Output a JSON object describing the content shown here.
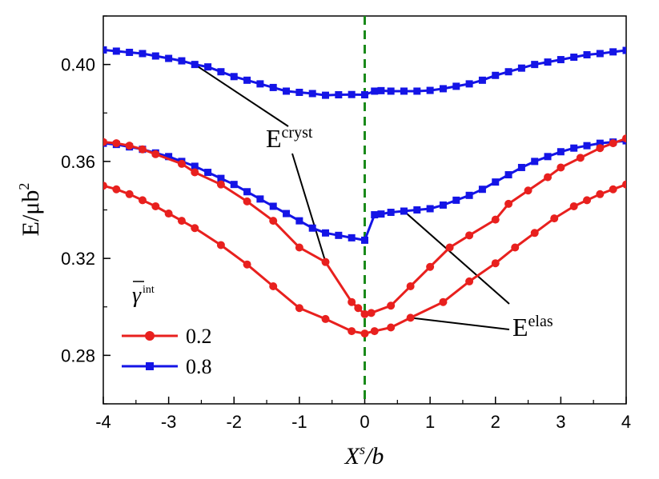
{
  "chart_data": {
    "type": "line",
    "title": "",
    "xlabel": {
      "main": "X",
      "sup": "s",
      "tail": "/b"
    },
    "ylabel": {
      "main": "E/μb",
      "sup": "2"
    },
    "xlim": [
      -4,
      4
    ],
    "ylim": [
      0.26,
      0.42
    ],
    "xticks": [
      "-4",
      "-3",
      "-2",
      "-1",
      "0",
      "1",
      "2",
      "3",
      "4"
    ],
    "yticks": [
      "0.28",
      "0.32",
      "0.36",
      "0.40"
    ],
    "reference_line": {
      "x": 0,
      "color": "#1a8a1a",
      "style": "dashed"
    },
    "legend": {
      "title_symbol": "γ",
      "title_sup": "int",
      "placement": "bottom-left",
      "entries": [
        {
          "label": "0.2",
          "color": "#e8201e",
          "marker": "circle"
        },
        {
          "label": "0.8",
          "color": "#1414e6",
          "marker": "square"
        }
      ]
    },
    "annotations": [
      {
        "text": "E",
        "sup": "cryst"
      },
      {
        "text": "E",
        "sup": "elas"
      }
    ],
    "series": [
      {
        "legend": "0.8",
        "kind": "cryst",
        "color": "#1414e6",
        "marker": "square",
        "x": [
          -4,
          -3.8,
          -3.6,
          -3.4,
          -3.2,
          -3,
          -2.8,
          -2.6,
          -2.4,
          -2.2,
          -2,
          -1.8,
          -1.6,
          -1.4,
          -1.2,
          -1,
          -0.8,
          -0.6,
          -0.4,
          -0.2,
          0,
          0.15,
          0.25,
          0.4,
          0.6,
          0.8,
          1,
          1.2,
          1.4,
          1.6,
          1.8,
          2,
          2.2,
          2.4,
          2.6,
          2.8,
          3,
          3.2,
          3.4,
          3.6,
          3.8,
          4
        ],
        "y": [
          0.406,
          0.4055,
          0.405,
          0.4045,
          0.4035,
          0.4025,
          0.4015,
          0.4,
          0.399,
          0.397,
          0.395,
          0.3935,
          0.392,
          0.3905,
          0.389,
          0.3885,
          0.388,
          0.3873,
          0.3875,
          0.3876,
          0.3875,
          0.389,
          0.3892,
          0.389,
          0.389,
          0.389,
          0.3893,
          0.39,
          0.391,
          0.392,
          0.3935,
          0.3955,
          0.397,
          0.3985,
          0.4,
          0.401,
          0.402,
          0.403,
          0.404,
          0.4045,
          0.4052,
          0.4058
        ]
      },
      {
        "legend": "0.8",
        "kind": "elas",
        "color": "#1414e6",
        "marker": "square",
        "x": [
          -4,
          -3.8,
          -3.6,
          -3.4,
          -3.2,
          -3,
          -2.8,
          -2.6,
          -2.4,
          -2.2,
          -2,
          -1.8,
          -1.6,
          -1.4,
          -1.2,
          -1,
          -0.8,
          -0.6,
          -0.4,
          -0.2,
          0,
          0.15,
          0.25,
          0.4,
          0.6,
          0.8,
          1,
          1.2,
          1.4,
          1.6,
          1.8,
          2,
          2.2,
          2.4,
          2.6,
          2.8,
          3,
          3.2,
          3.4,
          3.6,
          3.8,
          4
        ],
        "y": [
          0.3675,
          0.367,
          0.366,
          0.365,
          0.3635,
          0.362,
          0.36,
          0.358,
          0.3555,
          0.353,
          0.3505,
          0.3475,
          0.3445,
          0.3415,
          0.3385,
          0.3355,
          0.3325,
          0.3305,
          0.3295,
          0.3285,
          0.3275,
          0.338,
          0.3383,
          0.339,
          0.3395,
          0.34,
          0.3405,
          0.342,
          0.344,
          0.346,
          0.3485,
          0.3515,
          0.3545,
          0.3575,
          0.36,
          0.362,
          0.364,
          0.3655,
          0.3665,
          0.3675,
          0.368,
          0.3685
        ]
      },
      {
        "legend": "0.2",
        "kind": "cryst",
        "color": "#e8201e",
        "marker": "circle",
        "x": [
          -4,
          -3.8,
          -3.6,
          -3.4,
          -3.2,
          -2.8,
          -2.6,
          -2.2,
          -1.8,
          -1.4,
          -1,
          -0.6,
          -0.2,
          -0.1,
          0,
          0.1,
          0.4,
          0.7,
          1.0,
          1.3,
          1.6,
          2.0,
          2.2,
          2.5,
          2.8,
          3.0,
          3.3,
          3.6,
          3.8,
          4
        ],
        "y": [
          0.368,
          0.3675,
          0.3665,
          0.365,
          0.363,
          0.359,
          0.3555,
          0.3505,
          0.3435,
          0.3355,
          0.3245,
          0.3185,
          0.302,
          0.2995,
          0.297,
          0.2975,
          0.3005,
          0.3085,
          0.3165,
          0.3245,
          0.3295,
          0.336,
          0.3425,
          0.348,
          0.3535,
          0.3575,
          0.3615,
          0.3655,
          0.3675,
          0.3695
        ]
      },
      {
        "legend": "0.2",
        "kind": "elas",
        "color": "#e8201e",
        "marker": "circle",
        "x": [
          -4,
          -3.8,
          -3.6,
          -3.4,
          -3.2,
          -3,
          -2.8,
          -2.6,
          -2.2,
          -1.8,
          -1.4,
          -1,
          -0.6,
          -0.2,
          0,
          0.15,
          0.4,
          0.7,
          1.2,
          1.6,
          2.0,
          2.3,
          2.6,
          2.9,
          3.2,
          3.4,
          3.6,
          3.8,
          4
        ],
        "y": [
          0.35,
          0.3485,
          0.3465,
          0.344,
          0.3415,
          0.3385,
          0.3355,
          0.3325,
          0.3255,
          0.3175,
          0.3085,
          0.2995,
          0.295,
          0.29,
          0.289,
          0.29,
          0.2915,
          0.2955,
          0.302,
          0.3105,
          0.318,
          0.3245,
          0.3305,
          0.3365,
          0.3415,
          0.344,
          0.3465,
          0.3485,
          0.3505
        ]
      }
    ]
  }
}
